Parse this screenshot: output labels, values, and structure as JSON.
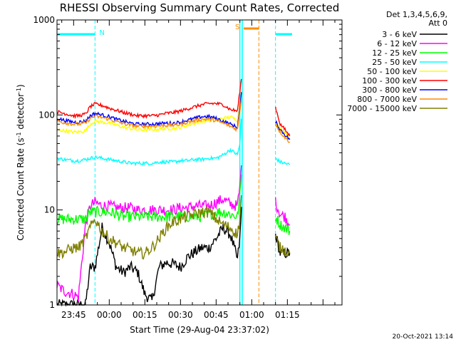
{
  "chart_data": {
    "type": "line",
    "title": "RHESSI Observing Summary Count Rates, Corrected",
    "xlabel": "Start Time (29-Aug-04 23:37:02)",
    "ylabel_main": "Corrected Count Rate (s",
    "ylabel_sup1": "-1",
    "ylabel_mid": " detector",
    "ylabel_sup2": "-1",
    "ylabel_end": ")",
    "y_scale": "log",
    "ylim": [
      1,
      1000
    ],
    "xlim_minutes": [
      -22,
      98
    ],
    "x_ticks": [
      {
        "label": "23:45",
        "minute": -15
      },
      {
        "label": "00:00",
        "minute": 0
      },
      {
        "label": "00:15",
        "minute": 15
      },
      {
        "label": "00:30",
        "minute": 30
      },
      {
        "label": "00:45",
        "minute": 45
      },
      {
        "label": "01:00",
        "minute": 60
      },
      {
        "label": "01:15",
        "minute": 75
      }
    ],
    "y_ticks": [
      {
        "label": "1",
        "value": 1
      },
      {
        "label": "10",
        "value": 10
      },
      {
        "label": "100",
        "value": 100
      },
      {
        "label": "1000",
        "value": 1000
      }
    ],
    "legend_header": [
      "Det 1,3,4,5,6,9,",
      "Att 0"
    ],
    "footer_date": "20-Oct-2021 13:14",
    "flags": [
      {
        "label": "N",
        "color": "#00ffff",
        "start_minute": -22,
        "end_minute": -6,
        "marker_minute": -6
      },
      {
        "label": "S",
        "color": "#ff8c00",
        "start_minute": 56.5,
        "end_minute": 63,
        "marker_minute": 56
      }
    ],
    "vlines": [
      {
        "minute": -6,
        "color": "#00ffff"
      },
      {
        "minute": 55,
        "color": "#00ffff"
      },
      {
        "minute": 56,
        "color": "#00ffff"
      },
      {
        "minute": 63,
        "color": "#ff8c00"
      },
      {
        "minute": 70,
        "color": "#00ffff"
      }
    ],
    "gap_minutes": [
      56,
      70
    ],
    "series": [
      {
        "name": "3 - 6 keV",
        "color": "#000000",
        "x": [
          -22,
          -19,
          -15,
          -13,
          -10,
          -8,
          -6,
          -3,
          0,
          3,
          6,
          9,
          12,
          15,
          18,
          21,
          24,
          27,
          30,
          33,
          36,
          39,
          42,
          45,
          48,
          51,
          54,
          55,
          56,
          70,
          72,
          74,
          76
        ],
        "y": [
          1,
          1,
          1,
          1,
          1,
          2.5,
          2.5,
          6.5,
          4.5,
          2.5,
          2.2,
          2.5,
          2.2,
          1.3,
          1.1,
          2.5,
          2.8,
          2.7,
          2.5,
          3.2,
          3.6,
          4,
          4,
          5,
          6.5,
          5.5,
          3,
          5,
          15,
          5.5,
          3.5,
          3.5,
          3.5
        ]
      },
      {
        "name": "6 - 12 keV",
        "color": "#ff00ff",
        "x": [
          -22,
          -19,
          -15,
          -13,
          -10,
          -8,
          -6,
          -3,
          0,
          3,
          6,
          9,
          12,
          15,
          18,
          21,
          24,
          27,
          30,
          33,
          36,
          39,
          42,
          45,
          48,
          51,
          54,
          55,
          56,
          70,
          72,
          74,
          76
        ],
        "y": [
          1.6,
          1.4,
          1.3,
          1.2,
          7,
          11,
          12,
          11,
          11,
          10.5,
          10.5,
          10.5,
          10,
          10,
          10,
          10,
          10,
          10,
          10.5,
          10.5,
          11,
          11,
          11,
          12,
          13,
          11.5,
          11,
          18,
          40,
          12,
          9,
          8.5,
          7
        ]
      },
      {
        "name": "12 - 25 keV",
        "color": "#00ff00",
        "x": [
          -22,
          -19,
          -15,
          -13,
          -10,
          -8,
          -6,
          -3,
          0,
          3,
          6,
          9,
          12,
          15,
          18,
          21,
          24,
          27,
          30,
          33,
          36,
          39,
          42,
          45,
          48,
          51,
          54,
          55,
          56,
          70,
          72,
          74,
          76
        ],
        "y": [
          8,
          8,
          8,
          8,
          8,
          9.5,
          9.5,
          9.5,
          9.5,
          9,
          8.5,
          8.5,
          8.5,
          8.5,
          8.5,
          8.5,
          8.5,
          8.5,
          8.5,
          8.5,
          8.5,
          8.5,
          9,
          9.5,
          9.5,
          9,
          8.5,
          14,
          30,
          8.5,
          7,
          6.5,
          6
        ]
      },
      {
        "name": "25 - 50 keV",
        "color": "#00ffff",
        "x": [
          -22,
          -19,
          -15,
          -13,
          -10,
          -8,
          -6,
          -3,
          0,
          3,
          6,
          9,
          12,
          15,
          18,
          21,
          24,
          27,
          30,
          33,
          36,
          39,
          42,
          45,
          48,
          51,
          54,
          55,
          56,
          70,
          72,
          74,
          76
        ],
        "y": [
          35,
          34,
          33,
          33,
          34,
          35,
          36,
          35,
          34,
          33,
          32,
          31,
          31,
          31,
          31,
          32,
          32,
          32,
          33,
          33,
          34,
          34,
          35,
          35,
          38,
          43,
          38,
          50,
          120,
          35,
          32,
          31,
          30
        ]
      },
      {
        "name": "50 - 100 keV",
        "color": "#ffff00",
        "x": [
          -22,
          -19,
          -15,
          -13,
          -10,
          -8,
          -6,
          -3,
          0,
          3,
          6,
          9,
          12,
          15,
          18,
          21,
          24,
          27,
          30,
          33,
          36,
          39,
          42,
          45,
          48,
          51,
          54,
          55,
          56,
          70,
          72,
          74,
          76
        ],
        "y": [
          70,
          68,
          66,
          66,
          68,
          80,
          86,
          84,
          82,
          78,
          74,
          72,
          70,
          70,
          70,
          71,
          72,
          72,
          74,
          78,
          82,
          86,
          88,
          90,
          92,
          95,
          88,
          130,
          220,
          80,
          72,
          66,
          60
        ]
      },
      {
        "name": "100 - 300 keV",
        "color": "#ff0000",
        "x": [
          -22,
          -19,
          -15,
          -13,
          -10,
          -8,
          -6,
          -3,
          0,
          3,
          6,
          9,
          12,
          15,
          18,
          21,
          24,
          27,
          30,
          33,
          36,
          39,
          42,
          45,
          48,
          51,
          54,
          55,
          56,
          70,
          72,
          74,
          76
        ],
        "y": [
          108,
          104,
          98,
          98,
          102,
          122,
          130,
          126,
          118,
          112,
          106,
          102,
          98,
          98,
          98,
          100,
          104,
          106,
          110,
          116,
          122,
          128,
          132,
          132,
          128,
          114,
          110,
          180,
          280,
          120,
          80,
          70,
          60
        ]
      },
      {
        "name": "300 - 800 keV",
        "color": "#0000ff",
        "x": [
          -22,
          -19,
          -15,
          -13,
          -10,
          -8,
          -6,
          -3,
          0,
          3,
          6,
          9,
          12,
          15,
          18,
          21,
          24,
          27,
          30,
          33,
          36,
          39,
          42,
          45,
          48,
          51,
          54,
          55,
          56,
          70,
          72,
          74,
          76
        ],
        "y": [
          92,
          88,
          84,
          84,
          86,
          98,
          104,
          100,
          96,
          90,
          86,
          82,
          80,
          80,
          80,
          81,
          82,
          82,
          84,
          88,
          92,
          96,
          96,
          92,
          86,
          80,
          74,
          120,
          200,
          85,
          70,
          62,
          55
        ]
      },
      {
        "name": "800 - 7000 keV",
        "color": "#ff8c00",
        "x": [
          -22,
          -19,
          -15,
          -13,
          -10,
          -8,
          -6,
          -3,
          0,
          3,
          6,
          9,
          12,
          15,
          18,
          21,
          24,
          27,
          30,
          33,
          36,
          39,
          42,
          45,
          48,
          51,
          54,
          55,
          56,
          70,
          72,
          74,
          76
        ],
        "y": [
          86,
          83,
          80,
          80,
          82,
          92,
          97,
          94,
          90,
          85,
          81,
          78,
          76,
          76,
          76,
          77,
          78,
          78,
          80,
          84,
          87,
          90,
          90,
          87,
          82,
          76,
          70,
          110,
          185,
          80,
          66,
          58,
          52
        ]
      },
      {
        "name": "7000 - 15000 keV",
        "color": "#808000",
        "x": [
          -22,
          -19,
          -15,
          -13,
          -10,
          -8,
          -6,
          -3,
          0,
          3,
          6,
          9,
          12,
          15,
          18,
          21,
          24,
          27,
          30,
          33,
          36,
          39,
          42,
          45,
          48,
          51,
          54,
          55,
          56,
          70,
          72,
          74,
          76
        ],
        "y": [
          3.5,
          3.6,
          4,
          4,
          5,
          6.5,
          8,
          6,
          5,
          4.5,
          4,
          3.8,
          3.5,
          3.5,
          4,
          5,
          6.5,
          7.5,
          8,
          8.5,
          9,
          9.5,
          9.5,
          8,
          7,
          6.5,
          5.5,
          8,
          20,
          5,
          4,
          3.8,
          3.5
        ]
      }
    ]
  }
}
